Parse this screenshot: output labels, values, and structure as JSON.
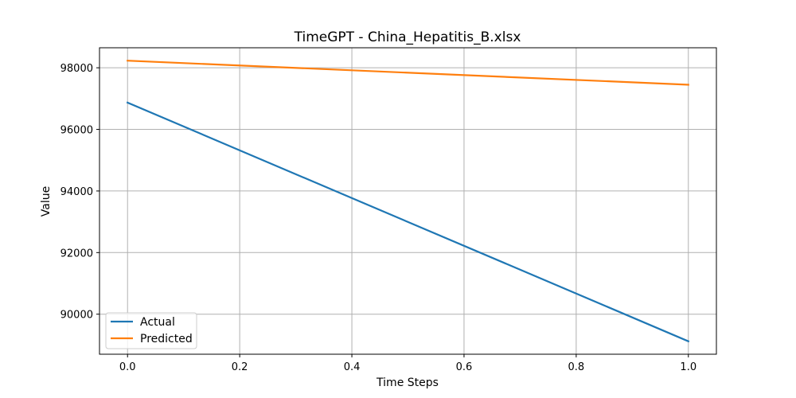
{
  "chart_data": {
    "type": "line",
    "title": "TimeGPT - China_Hepatitis_B.xlsx",
    "xlabel": "Time Steps",
    "ylabel": "Value",
    "x": [
      0.0,
      1.0
    ],
    "xlim": [
      -0.05,
      1.05
    ],
    "ylim": [
      88700,
      98650
    ],
    "xticks": [
      0.0,
      0.2,
      0.4,
      0.6,
      0.8,
      1.0
    ],
    "xtick_labels": [
      "0.0",
      "0.2",
      "0.4",
      "0.6",
      "0.8",
      "1.0"
    ],
    "yticks": [
      90000,
      92000,
      94000,
      96000,
      98000
    ],
    "ytick_labels": [
      "90000",
      "92000",
      "94000",
      "96000",
      "98000"
    ],
    "grid": true,
    "legend_position": "lower-left",
    "series": [
      {
        "name": "Actual",
        "color": "#1f77b4",
        "values": [
          96870,
          89120
        ]
      },
      {
        "name": "Predicted",
        "color": "#ff7f0e",
        "values": [
          98230,
          97450
        ]
      }
    ]
  }
}
